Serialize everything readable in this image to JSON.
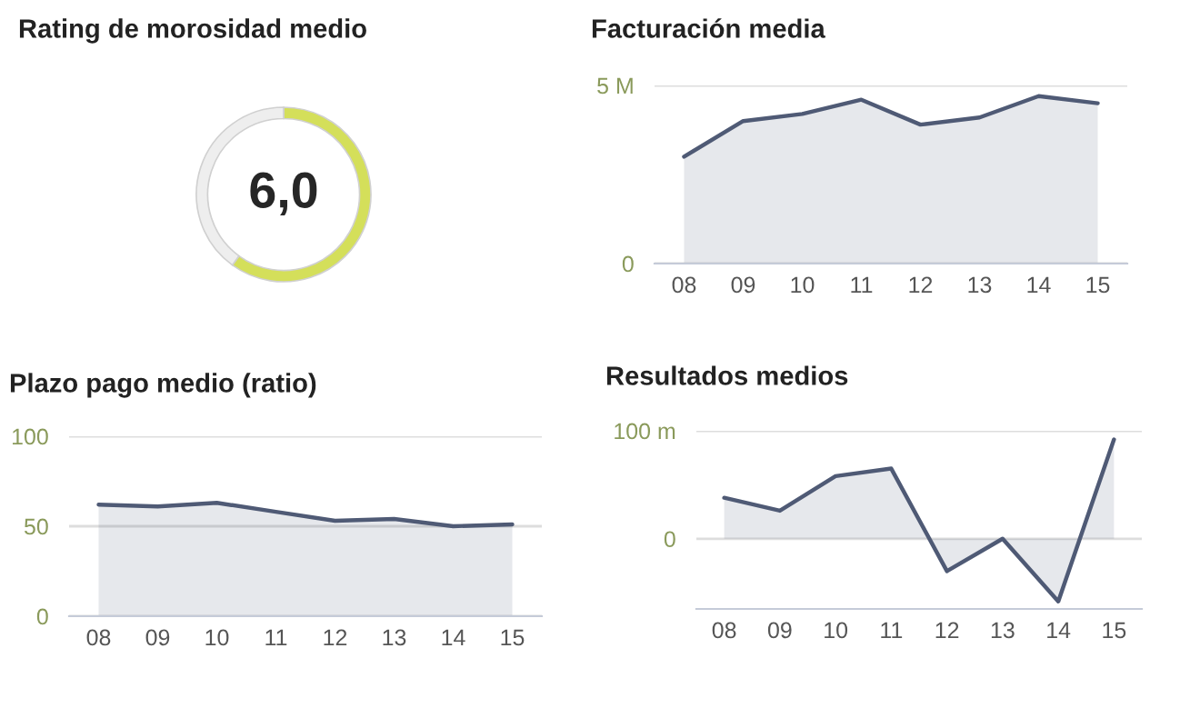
{
  "chart_data": [
    {
      "type": "donut",
      "title": "Rating de morosidad medio",
      "categories": [
        null,
        null
      ],
      "values": [
        60,
        40
      ],
      "colors": [
        "#d4df5a",
        "#eeeeee"
      ],
      "annotations": [
        "6,0"
      ]
    },
    {
      "type": "area",
      "title": "Facturación media",
      "categories": [
        "08",
        "09",
        "10",
        "11",
        "12",
        "13",
        "14",
        "15"
      ],
      "series": [
        {
          "color": "#4f5a75",
          "values": [
            3.0,
            4.0,
            4.2,
            4.6,
            3.9,
            4.1,
            4.7,
            4.5
          ]
        }
      ],
      "ylim": [
        0,
        5
      ],
      "yticks": [
        0,
        {
          "value": 5,
          "label": "5 M"
        }
      ],
      "grid": "y"
    },
    {
      "type": "area",
      "title": "Plazo pago medio (ratio)",
      "categories": [
        "08",
        "09",
        "10",
        "11",
        "12",
        "13",
        "14",
        "15"
      ],
      "series": [
        {
          "color": "#4f5a75",
          "values": [
            62,
            61,
            63,
            58,
            53,
            54,
            50,
            51
          ]
        }
      ],
      "ylim": [
        0,
        100
      ],
      "yticks": [
        0,
        50,
        100
      ],
      "grid": "y"
    },
    {
      "type": "area",
      "title": "Resultados medios",
      "categories": [
        "08",
        "09",
        "10",
        "11",
        "12",
        "13",
        "14",
        "15"
      ],
      "series": [
        {
          "color": "#4f5a75",
          "values": [
            38,
            26,
            58,
            65,
            -30,
            0,
            -58,
            92
          ]
        }
      ],
      "ylim": [
        -65,
        100
      ],
      "yticks": [
        0,
        {
          "value": 100,
          "label": "100 m"
        }
      ],
      "grid": "y"
    }
  ]
}
